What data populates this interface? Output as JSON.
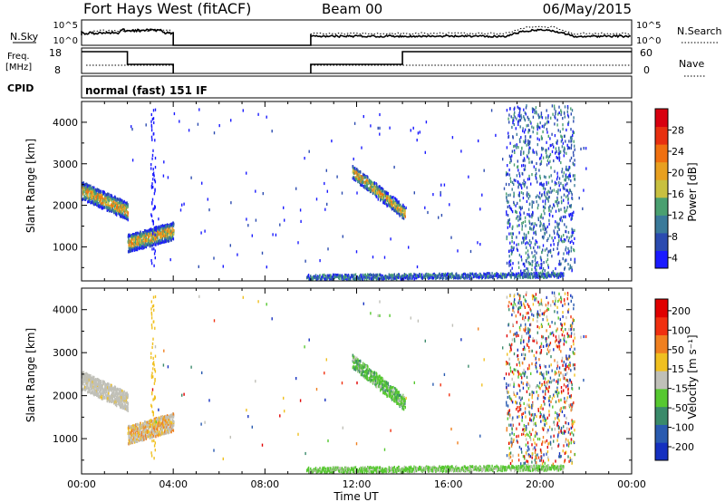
{
  "header": {
    "station": "Fort Hays West (fitACF)",
    "beam": "Beam 00",
    "date": "06/May/2015"
  },
  "strips": {
    "nsky_label": "N.Sky",
    "nsky_ticks": [
      "10^5",
      "10^0"
    ],
    "nsearch_label": "N.Search",
    "nsearch_ticks": [
      "10^5",
      "10^0"
    ],
    "freq_label_1": "Freq.",
    "freq_label_2": "[MHz]",
    "freq_ticks": [
      "18",
      "8"
    ],
    "nave_label": "Nave",
    "nave_ticks": [
      "60",
      "0"
    ],
    "cpid_label": "CPID",
    "cpid_value": "normal (fast) 151 IF"
  },
  "chart_data": [
    {
      "type": "heatmap",
      "name": "Power",
      "ylabel": "Slant Range [km]",
      "xlabel": "Time UT",
      "x_ticks": [
        "00:00",
        "04:00",
        "08:00",
        "12:00",
        "16:00",
        "20:00",
        "00:00"
      ],
      "y_ticks": [
        "1000",
        "2000",
        "3000",
        "4000"
      ],
      "xlim_hours": [
        0,
        24
      ],
      "ylim_km": [
        180,
        4500
      ],
      "colorbar": {
        "label": "Power [dB]",
        "ticks": [
          "4",
          "8",
          "12",
          "16",
          "20",
          "24",
          "28"
        ],
        "colors": [
          "#1a1aff",
          "#2b4bb0",
          "#3a7a9a",
          "#4aa070",
          "#c8c040",
          "#e8a020",
          "#f07010",
          "#e83010",
          "#d80010"
        ]
      },
      "features": [
        {
          "hours": [
            0.0,
            2.0
          ],
          "range_km": [
            2350,
            1850
          ],
          "description": "descending echo band"
        },
        {
          "hours": [
            2.0,
            4.0
          ],
          "range_km": [
            1100,
            1400
          ],
          "description": "ascending echo band"
        },
        {
          "hours": [
            11.8,
            14.1
          ],
          "range_km": [
            2800,
            1800
          ],
          "description": "descending echo band"
        },
        {
          "hours": [
            9.8,
            21.0
          ],
          "range_km": [
            250,
            400
          ],
          "description": "near-range echoes"
        },
        {
          "hours": [
            18.5,
            21.5
          ],
          "range_km": [
            400,
            4400
          ],
          "description": "scattered echoes"
        }
      ]
    },
    {
      "type": "heatmap",
      "name": "Velocity",
      "ylabel": "Slant Range [km]",
      "xlabel": "Time UT",
      "x_ticks": [
        "00:00",
        "04:00",
        "08:00",
        "12:00",
        "16:00",
        "20:00",
        "00:00"
      ],
      "y_ticks": [
        "1000",
        "2000",
        "3000",
        "4000"
      ],
      "xlim_hours": [
        0,
        24
      ],
      "ylim_km": [
        180,
        4500
      ],
      "colorbar": {
        "label": "Velocity [m s⁻¹]",
        "ticks": [
          "200",
          "100",
          "50",
          "15",
          "-15",
          "-50",
          "-100",
          "-200"
        ],
        "colors": [
          "#1530c0",
          "#2a5bb0",
          "#3a8a6a",
          "#56c830",
          "#c0c0b8",
          "#f0c020",
          "#f08020",
          "#f03010",
          "#e00000"
        ]
      }
    }
  ]
}
